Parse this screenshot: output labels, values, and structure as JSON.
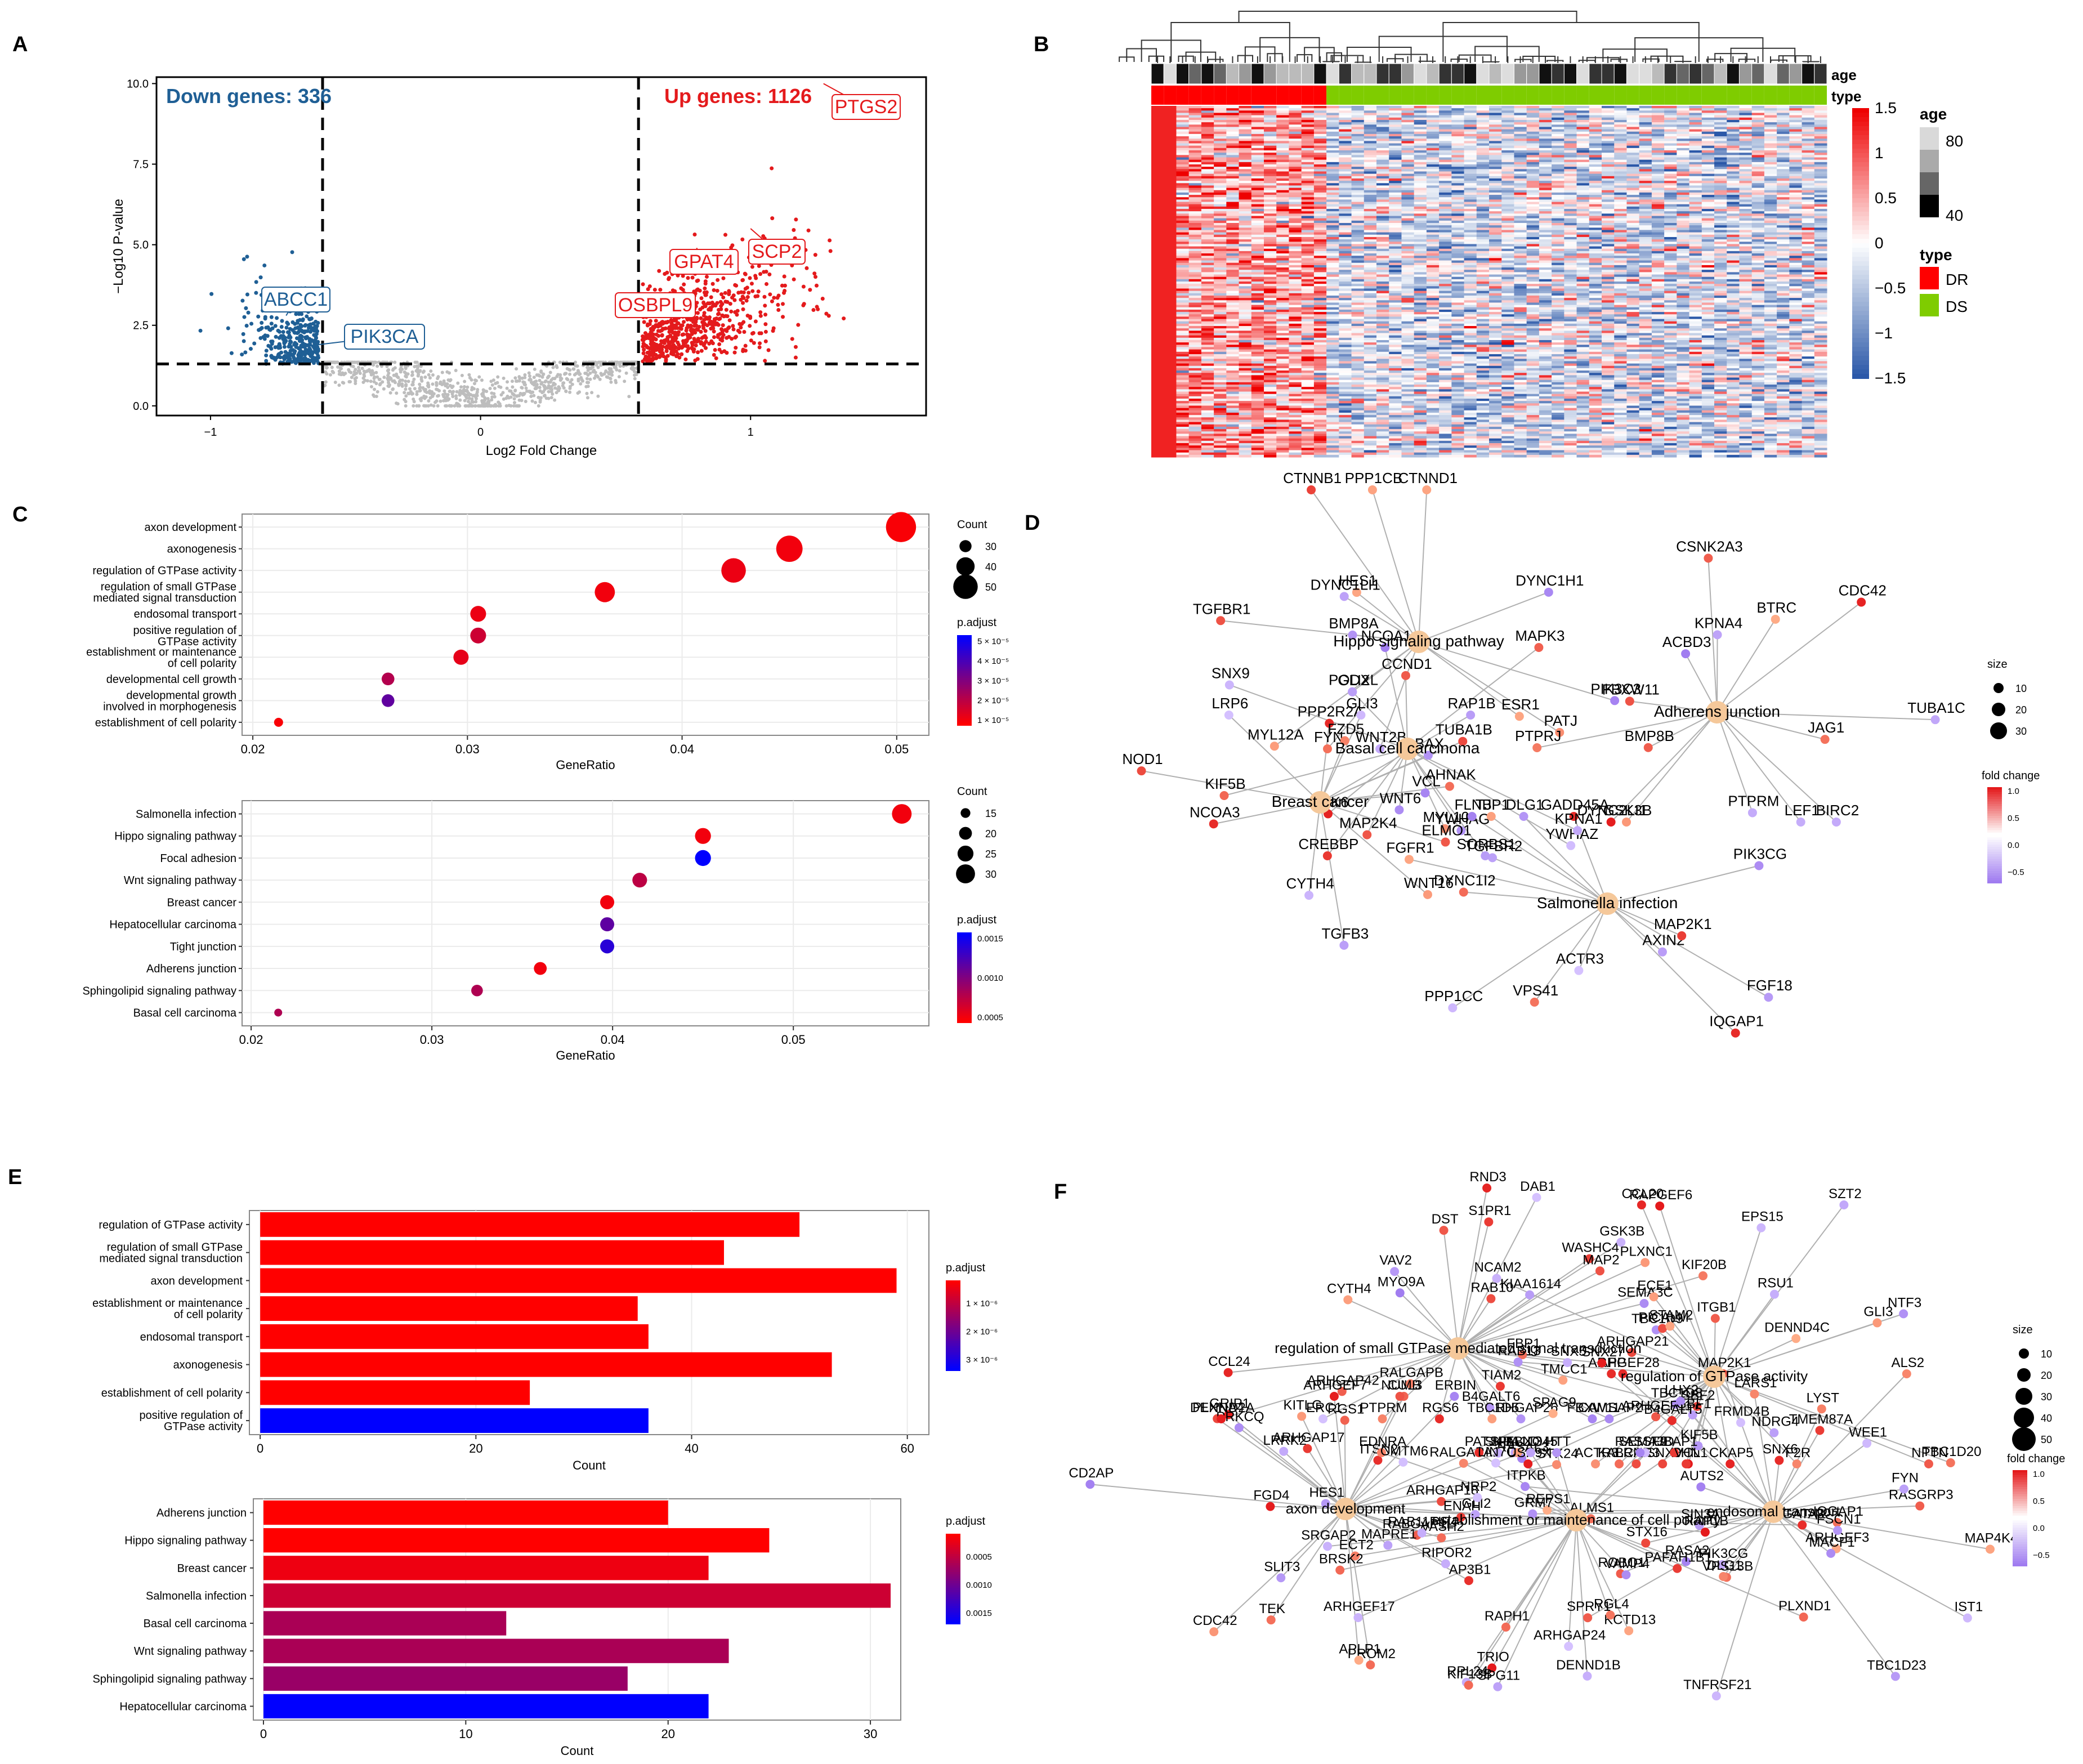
{
  "panel_labels": {
    "A": "A",
    "B": "B",
    "C": "C",
    "D": "D",
    "E": "E",
    "F": "F"
  },
  "colors": {
    "up": "#e41a1c",
    "down": "#1f5f95",
    "ns": "#bdbdbd",
    "padj_low": "#ff0000",
    "padj_high": "#0000ff",
    "node_hub": "#f5c89a",
    "fc_high": "#e41a1c",
    "fc_low": "#a07cf0"
  },
  "chart_data": [
    {
      "id": "A",
      "type": "scatter",
      "title": "",
      "xlabel": "Log2 Fold Change",
      "ylabel": "−Log10 P-value",
      "xlim": [
        -1.2,
        1.65
      ],
      "ylim": [
        -0.3,
        10.2
      ],
      "xticks": [
        -1,
        0,
        1
      ],
      "xtick_labels": [
        "−1",
        "0",
        "1"
      ],
      "yticks": [
        0,
        2.5,
        5,
        7.5,
        10
      ],
      "ytick_labels": [
        "0.0",
        "2.5",
        "5.0",
        "7.5",
        "10.0"
      ],
      "thresholds": {
        "x": [
          -0.585,
          0.585
        ],
        "y": 1.3
      },
      "down_text": "Down genes: 336",
      "up_text": "Up genes: 1126",
      "labeled_points": [
        {
          "gene": "PTGS2",
          "x": 1.27,
          "y": 10.0,
          "group": "up"
        },
        {
          "gene": "SCP2",
          "x": 1.0,
          "y": 5.5,
          "group": "up"
        },
        {
          "gene": "GPAT4",
          "x": 0.8,
          "y": 4.9,
          "group": "up"
        },
        {
          "gene": "OSBPL9",
          "x": 0.62,
          "y": 3.2,
          "group": "up"
        },
        {
          "gene": "ABCC1",
          "x": -0.72,
          "y": 2.8,
          "group": "down"
        },
        {
          "gene": "PIK3CA",
          "x": -0.6,
          "y": 1.9,
          "group": "down"
        }
      ]
    },
    {
      "id": "B",
      "type": "heatmap",
      "annotation_labels": [
        "age",
        "type"
      ],
      "legend_scale_ticks": [
        "1.5",
        "1",
        "0.5",
        "0",
        "−0.5",
        "−1",
        "−1.5"
      ],
      "legend_age_title": "age",
      "legend_age_ticks": [
        "80",
        "40"
      ],
      "legend_type_title": "type",
      "types": [
        "DR",
        "DS"
      ],
      "n_dr": 14,
      "n_ds": 40,
      "n_rows": 150
    },
    {
      "id": "C1",
      "type": "scatter",
      "xlabel": "GeneRatio",
      "xlim": [
        0.0195,
        0.0515
      ],
      "xticks": [
        0.02,
        0.03,
        0.04,
        0.05
      ],
      "xtick_labels": [
        "0.02",
        "0.03",
        "0.04",
        "0.05"
      ],
      "terms": [
        "axon development",
        "axonogenesis",
        "regulation of GTPase activity",
        "regulation of small GTPase\nmediated signal transduction",
        "endosomal transport",
        "positive regulation of\nGTPase activity",
        "establishment or maintenance\nof cell polarity",
        "developmental cell growth",
        "developmental growth\ninvolved in morphogenesis",
        "establishment of cell polarity"
      ],
      "gene_ratio": [
        0.0502,
        0.045,
        0.0424,
        0.0364,
        0.0305,
        0.0305,
        0.0297,
        0.0263,
        0.0263,
        0.0212
      ],
      "count": [
        59,
        53,
        50,
        43,
        36,
        36,
        35,
        31,
        31,
        25
      ],
      "p_adjust": [
        1e-06,
        2e-06,
        3e-06,
        2e-06,
        3e-06,
        8e-06,
        4e-06,
        1.2e-05,
        2.5e-05,
        1e-06
      ],
      "size_legend_title": "Count",
      "size_legend": [
        "30",
        "40",
        "50"
      ],
      "color_legend_title": "p.adjust",
      "color_legend_ticks": [
        "5 × 10⁻⁵",
        "4 × 10⁻⁵",
        "3 × 10⁻⁵",
        "2 × 10⁻⁵",
        "1 × 10⁻⁵"
      ]
    },
    {
      "id": "C2",
      "type": "scatter",
      "xlabel": "GeneRatio",
      "xlim": [
        0.0195,
        0.0575
      ],
      "xticks": [
        0.02,
        0.03,
        0.04,
        0.05
      ],
      "xtick_labels": [
        "0.02",
        "0.03",
        "0.04",
        "0.05"
      ],
      "terms": [
        "Salmonella infection",
        "Hippo signaling pathway",
        "Focal adhesion",
        "Wnt signaling pathway",
        "Breast cancer",
        "Hepatocellular carcinoma",
        "Tight junction",
        "Adherens junction",
        "Sphingolipid signaling pathway",
        "Basal cell carcinoma"
      ],
      "gene_ratio": [
        0.056,
        0.045,
        0.045,
        0.0415,
        0.0397,
        0.0397,
        0.0397,
        0.036,
        0.0325,
        0.0215
      ],
      "count": [
        31,
        25,
        25,
        23,
        22,
        22,
        22,
        20,
        18,
        12
      ],
      "p_adjust": [
        0.0001,
        0.0001,
        0.0019,
        0.0005,
        0.0001,
        0.0012,
        0.0016,
        0.0001,
        0.0006,
        0.0006
      ],
      "size_legend_title": "Count",
      "size_legend": [
        "15",
        "20",
        "25",
        "30"
      ],
      "color_legend_title": "p.adjust",
      "color_legend_ticks": [
        "0.0015",
        "0.0010",
        "0.0005"
      ]
    },
    {
      "id": "E1",
      "type": "bar",
      "orientation": "horizontal",
      "xlabel": "Count",
      "xlim": [
        -1,
        62
      ],
      "xticks": [
        0,
        20,
        40,
        60
      ],
      "xtick_labels": [
        "0",
        "20",
        "40",
        "60"
      ],
      "categories": [
        "regulation of GTPase activity",
        "regulation of small GTPase\nmediated signal transduction",
        "axon development",
        "establishment or maintenance\nof cell polarity",
        "endosomal transport",
        "axonogenesis",
        "establishment of cell polarity",
        "positive regulation of\nGTPase activity"
      ],
      "values": [
        50,
        43,
        59,
        35,
        36,
        53,
        25,
        36
      ],
      "p_adjust": [
        1e-07,
        1e-07,
        1e-07,
        1e-07,
        1e-07,
        1e-07,
        1e-07,
        3.2e-06
      ],
      "color_legend_title": "p.adjust",
      "color_legend_ticks": [
        "1 × 10⁻⁶",
        "2 × 10⁻⁶",
        "3 × 10⁻⁶"
      ]
    },
    {
      "id": "E2",
      "type": "bar",
      "orientation": "horizontal",
      "xlabel": "Count",
      "xlim": [
        -0.5,
        31.5
      ],
      "xticks": [
        0,
        10,
        20,
        30
      ],
      "xtick_labels": [
        "0",
        "10",
        "20",
        "30"
      ],
      "categories": [
        "Adherens junction",
        "Hippo signaling pathway",
        "Breast cancer",
        "Salmonella infection",
        "Basal cell carcinoma",
        "Wnt signaling pathway",
        "Sphingolipid signaling pathway",
        "Hepatocellular carcinoma"
      ],
      "values": [
        20,
        25,
        22,
        31,
        12,
        23,
        18,
        22
      ],
      "p_adjust": [
        0.0001,
        0.0001,
        0.0002,
        0.0004,
        0.0006,
        0.0006,
        0.0007,
        0.0016
      ],
      "color_legend_title": "p.adjust",
      "color_legend_ticks": [
        "0.0005",
        "0.0010",
        "0.0015"
      ]
    }
  ],
  "networks": {
    "D": {
      "hubs": [
        "Hippo signaling pathway",
        "Adherens junction",
        "Basal cell carcinoma",
        "Breast cancer",
        "Salmonella infection"
      ],
      "genes": [
        "PPP1CB",
        "BTRC",
        "YWHAZ",
        "TGFB3",
        "DLG1",
        "BMP8A",
        "BMP8B",
        "YWHAG",
        "PPP2R2A",
        "PPP1CC",
        "PATJ",
        "FBXW11",
        "GLI2",
        "GLI3",
        "TGFBR2",
        "TGFBR1",
        "PTPRM",
        "SORBS1",
        "RAP1B",
        "TJP1",
        "CTNND1",
        "CSNK2A3",
        "CREBBP",
        "VCL",
        "IQGAP1",
        "FYN",
        "PTPRJ",
        "CCND1",
        "FZD5",
        "AXIN2",
        "WNT2B",
        "GSK3B",
        "WNT6",
        "WNT16",
        "FGFR1",
        "CTNNB1",
        "LEF1",
        "CDK6",
        "LRP6",
        "GADD45A",
        "HES1",
        "BIRC2",
        "MAPK3",
        "NCOA3",
        "FGF18",
        "ESR1",
        "JAG1",
        "NCOA1",
        "BAX",
        "MAP2K1",
        "MYL12A",
        "CDC42",
        "MYL10",
        "NOD1",
        "VPS41",
        "DYNC1H1",
        "TUBA1C",
        "KIF5B",
        "ELMO1",
        "PIK3CG",
        "PIK3C3",
        "ACBD3",
        "MAP2K4",
        "CYTH4",
        "ACTR3",
        "DYNC1LI1",
        "KPNA4",
        "SNX9",
        "AHNAK",
        "FLNB",
        "PODXL",
        "DYNC2LI1",
        "KPNA1",
        "TUBA1B",
        "DYNC1I2"
      ],
      "size_legend_title": "size",
      "size_legend": [
        "10",
        "20",
        "30"
      ],
      "fc_legend_title": "fold change",
      "fc_legend_ticks": [
        "1.0",
        "0.5",
        "0.0",
        "−0.5"
      ]
    },
    "F": {
      "hubs": [
        "regulation of small GTPase mediated signal transduction",
        "regulation of GTPase activity",
        "axon development",
        "endosomal transport",
        "establishment or maintenance of cell polarity"
      ],
      "genes": [
        "ARHGAP26",
        "ARHGAP21",
        "ARHGAP17",
        "ITPKB",
        "KCTD13",
        "RGS6",
        "TBC1D20",
        "CUL3",
        "ARHGEF3",
        "ECT2",
        "VAV2",
        "CCL20",
        "RABGAP1L",
        "IQGAP1",
        "ARHGEF17",
        "CYTH4",
        "F2R",
        "FGD4",
        "RASGRP3",
        "RGL4",
        "FBP1",
        "DENND4C",
        "CD2AP",
        "MAP4K4",
        "ARHGAP24",
        "S1PR1",
        "RAPGEF6",
        "KITLG",
        "PIK3CG",
        "SRGAP2",
        "CCL24",
        "NTF3",
        "ARHGAP18",
        "ARHGEF28",
        "RALGAPA1",
        "ARHGAP42",
        "TBC1D9",
        "RGS1",
        "SBF2",
        "RASAL3",
        "RALGAPB",
        "BCAR3",
        "PROM2",
        "LARS1",
        "RASA2",
        "TBC1D8",
        "RSU1",
        "ARHGEF7",
        "ROBO1",
        "TRIO",
        "TIAM2",
        "CHN1",
        "RIPOR2",
        "SPRY1",
        "DENND1B",
        "WASHC4",
        "KIF5B",
        "GLI2",
        "AUTS2",
        "PLXND1",
        "MYO9A",
        "SNX9",
        "LRRK2",
        "REPS1",
        "SEMA3D",
        "B4GALT6",
        "KALRN",
        "PLXNA4",
        "ALS2",
        "SIPA1L3",
        "TBC1D5",
        "EPS15",
        "GRIP1",
        "MACF1",
        "SPG11",
        "PLXNC1",
        "ITGB1",
        "ITSN2",
        "SNX6",
        "EDNRA",
        "CAMSAP2",
        "ARHGEF11",
        "ERBIN",
        "GBF1",
        "UBAP1",
        "ERC1",
        "GLI3",
        "NUMB",
        "TNFRSF21",
        "PAFAH1B1",
        "TMCC1",
        "SZT2",
        "STK24",
        "FYN",
        "PALLD",
        "GSK3B",
        "PICALM",
        "CMTM6",
        "VPS13B",
        "RAPH1",
        "SEMA3C",
        "VCL",
        "SLIT3",
        "TBC1D23",
        "RPL24",
        "PTPRM",
        "NCAM2",
        "PRKCQ",
        "STX16",
        "VAMP4",
        "DENND2A",
        "ECE1",
        "APLP1",
        "APP",
        "ENAH",
        "RAB10",
        "NDRG4",
        "VASH2",
        "LHX2",
        "GATA3",
        "SNX27",
        "STAM2",
        "RAB11FIP4",
        "SIN3A",
        "KIF13B",
        "DAB1",
        "USP9X",
        "ALMS1",
        "TMEM87A",
        "RASSF9",
        "SNX5",
        "B4GALT5",
        "NRP2",
        "IST1",
        "BRSK2",
        "KIAA1614",
        "RAB13",
        "SPAG9",
        "GRM7",
        "FBXO45",
        "MAP2",
        "NPTN",
        "SKIL",
        "MAP2K1",
        "PATJ",
        "RND3",
        "FRMD4B",
        "AP3B1",
        "LYST",
        "HES1",
        "FBXW11",
        "ACTR3",
        "MAPRE1",
        "WEE1",
        "HTT",
        "DST",
        "CKAP5",
        "TEK",
        "DLG1",
        "RAP1B",
        "KIF20B",
        "LIN7C",
        "CDC42",
        "FSCN1"
      ],
      "size_legend_title": "size",
      "size_legend": [
        "10",
        "20",
        "30",
        "40",
        "50"
      ],
      "fc_legend_title": "fold change",
      "fc_legend_ticks": [
        "1.0",
        "0.5",
        "0.0",
        "−0.5"
      ]
    }
  }
}
